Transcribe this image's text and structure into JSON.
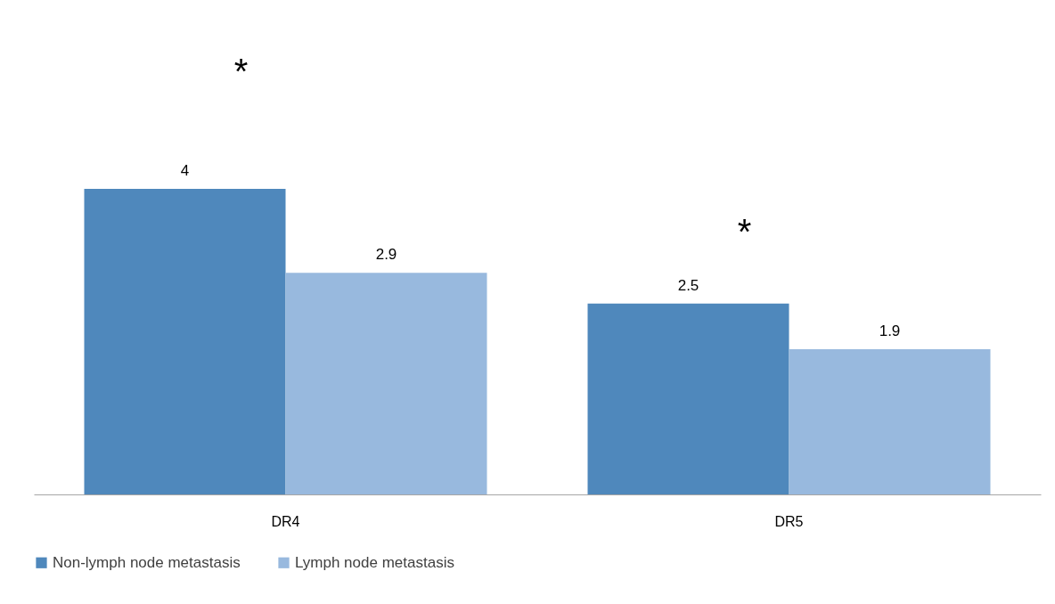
{
  "chart_data": {
    "type": "bar",
    "categories": [
      "DR4",
      "DR5"
    ],
    "series": [
      {
        "name": "Non-lymph node metastasis",
        "color": "#4f88bc",
        "values": [
          4,
          2.5
        ]
      },
      {
        "name": "Lymph node metastasis",
        "color": "#98b9de",
        "values": [
          2.9,
          1.9
        ]
      }
    ],
    "data_labels": true,
    "legend": "bottom",
    "annotations": [
      "*",
      "*"
    ]
  }
}
